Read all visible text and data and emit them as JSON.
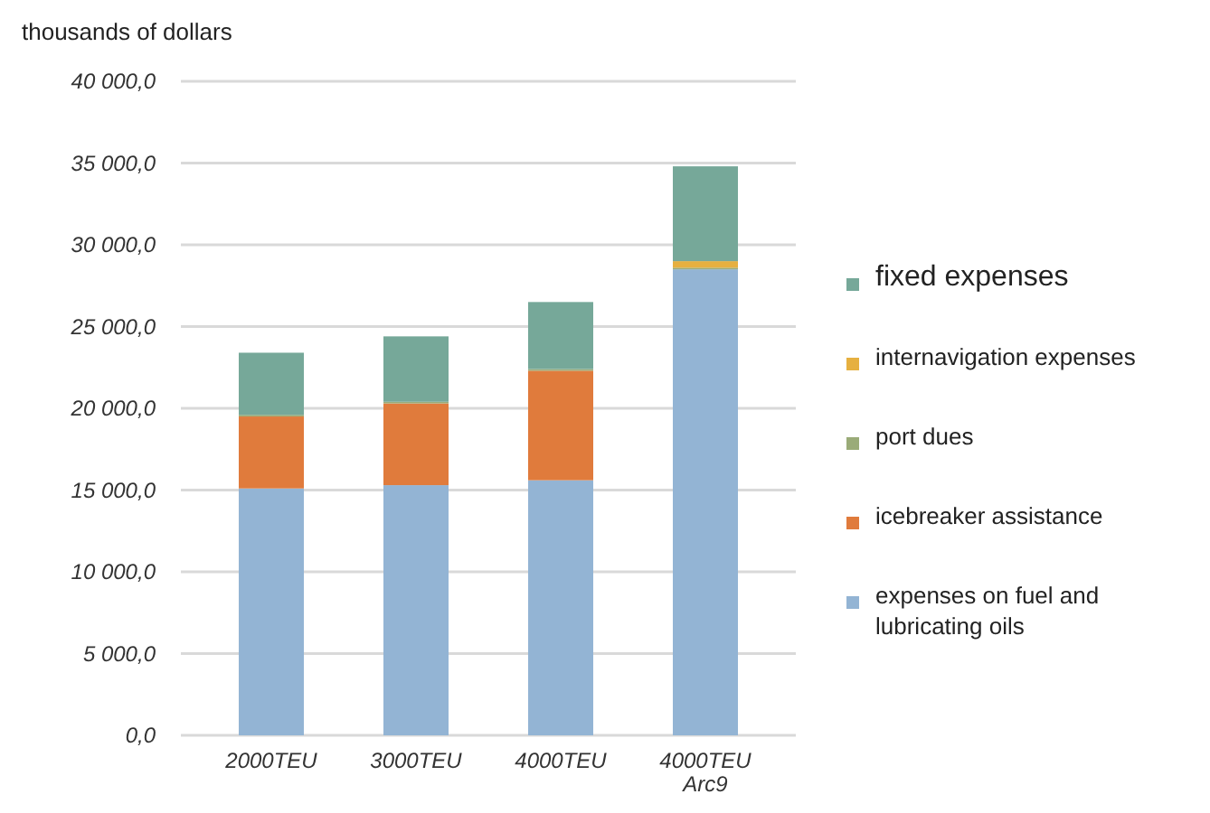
{
  "chart_data": {
    "type": "bar",
    "stacked": true,
    "ylabel": "thousands of dollars",
    "categories": [
      "2000TEU",
      "3000TEU",
      "4000TEU",
      "4000TEU Arc9"
    ],
    "series": [
      {
        "name": "expenses on fuel and lubricating oils",
        "color": "#93b4d4",
        "values": [
          15100,
          15300,
          15600,
          28500
        ]
      },
      {
        "name": "icebreaker assistance",
        "color": "#e07b3c",
        "values": [
          4400,
          5000,
          6700,
          0
        ]
      },
      {
        "name": "port dues",
        "color": "#9aab78",
        "values": [
          100,
          100,
          100,
          100
        ]
      },
      {
        "name": "internavigation expenses",
        "color": "#e6b040",
        "values": [
          0,
          0,
          0,
          400
        ]
      },
      {
        "name": "fixed expenses",
        "color": "#76a899",
        "values": [
          3800,
          4000,
          4100,
          5800
        ]
      }
    ],
    "ylim": [
      0,
      40000
    ],
    "yticks": [
      {
        "value": 0,
        "label": "0,0"
      },
      {
        "value": 5000,
        "label": "5 000,0"
      },
      {
        "value": 10000,
        "label": "10 000,0"
      },
      {
        "value": 15000,
        "label": "15 000,0"
      },
      {
        "value": 20000,
        "label": "20 000,0"
      },
      {
        "value": 25000,
        "label": "25 000,0"
      },
      {
        "value": 30000,
        "label": "30 000,0"
      },
      {
        "value": 35000,
        "label": "35 000,0"
      },
      {
        "value": 40000,
        "label": "40 000,0"
      }
    ],
    "grid": "y",
    "legend": "right"
  }
}
